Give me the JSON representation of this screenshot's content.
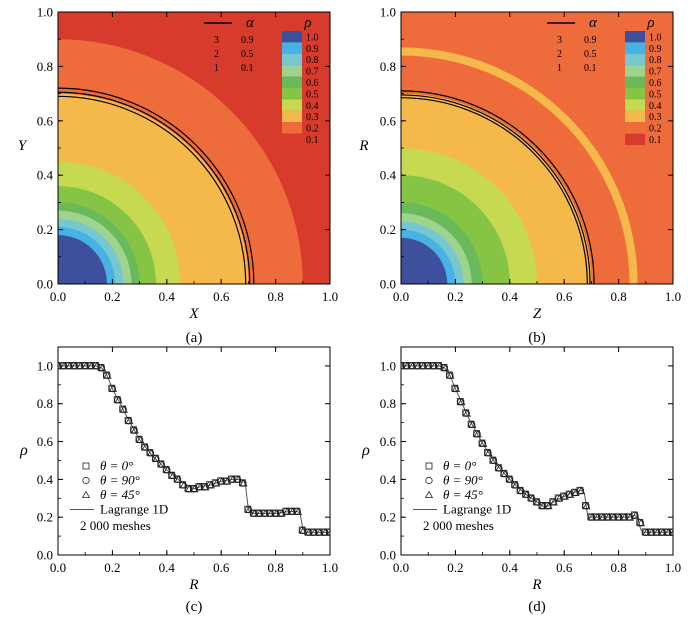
{
  "chart_data": [
    {
      "type": "heatmap",
      "caption": "(a)",
      "xlabel": "X",
      "ylabel": "Y",
      "xlim": [
        0,
        1.0
      ],
      "ylim": [
        0,
        1.0
      ],
      "xticks": [
        "0.0",
        "0.2",
        "0.4",
        "0.6",
        "0.8",
        "1.0"
      ],
      "yticks": [
        "0.0",
        "0.2",
        "0.4",
        "0.6",
        "0.8",
        "1.0"
      ],
      "density_bands": [
        {
          "level": 1.0,
          "outer_radius": 0.18
        },
        {
          "level": 0.9,
          "outer_radius": 0.21
        },
        {
          "level": 0.8,
          "outer_radius": 0.24
        },
        {
          "level": 0.7,
          "outer_radius": 0.27
        },
        {
          "level": 0.6,
          "outer_radius": 0.3
        },
        {
          "level": 0.5,
          "outer_radius": 0.36
        },
        {
          "level": 0.4,
          "outer_radius": 0.45
        },
        {
          "level": 0.3,
          "outer_radius": 0.7
        },
        {
          "level": 0.2,
          "outer_radius": 0.9
        }
      ],
      "background_level": 0.1,
      "alpha_contours": [
        {
          "id": "1",
          "alpha": 0.1,
          "radius": 0.69
        },
        {
          "id": "2",
          "alpha": 0.5,
          "radius": 0.705
        },
        {
          "id": "3",
          "alpha": 0.9,
          "radius": 0.72
        }
      ]
    },
    {
      "type": "heatmap",
      "caption": "(b)",
      "xlabel": "Z",
      "ylabel": "R",
      "xlim": [
        0,
        1.0
      ],
      "ylim": [
        0,
        1.0
      ],
      "xticks": [
        "0.0",
        "0.2",
        "0.4",
        "0.6",
        "0.8",
        "1.0"
      ],
      "yticks": [
        "0.0",
        "0.2",
        "0.4",
        "0.6",
        "0.8",
        "1.0"
      ],
      "density_bands": [
        {
          "level": 1.0,
          "outer_radius": 0.17
        },
        {
          "level": 0.9,
          "outer_radius": 0.2
        },
        {
          "level": 0.8,
          "outer_radius": 0.23
        },
        {
          "level": 0.7,
          "outer_radius": 0.26
        },
        {
          "level": 0.6,
          "outer_radius": 0.3
        },
        {
          "level": 0.5,
          "outer_radius": 0.4
        },
        {
          "level": 0.4,
          "outer_radius": 0.5
        },
        {
          "level": 0.3,
          "outer_radius": 0.7
        },
        {
          "level": 0.2,
          "outer_radius": 0.84
        },
        {
          "level": 0.3,
          "outer_radius": 0.87
        }
      ],
      "background_level": 0.2,
      "alpha_contours": [
        {
          "id": "1",
          "alpha": 0.1,
          "radius": 0.685
        },
        {
          "id": "2",
          "alpha": 0.5,
          "radius": 0.695
        },
        {
          "id": "3",
          "alpha": 0.9,
          "radius": 0.71
        }
      ]
    },
    {
      "type": "scatter",
      "caption": "(c)",
      "xlabel": "R",
      "ylabel": "ρ",
      "xlim": [
        0,
        1.0
      ],
      "ylim": [
        0,
        1.1
      ],
      "xticks": [
        "0.0",
        "0.2",
        "0.4",
        "0.6",
        "0.8",
        "1.0"
      ],
      "yticks": [
        "0.0",
        "0.2",
        "0.4",
        "0.6",
        "0.8",
        "1.0"
      ],
      "line_series": {
        "name": "Lagrange 1D",
        "x": [
          0,
          0.14,
          0.16,
          0.18,
          0.2,
          0.25,
          0.3,
          0.35,
          0.4,
          0.45,
          0.5,
          0.52,
          0.56,
          0.6,
          0.64,
          0.67,
          0.685,
          0.69,
          0.695,
          0.7,
          0.705,
          0.71,
          0.75,
          0.8,
          0.85,
          0.88,
          0.89,
          0.895,
          0.9,
          0.905,
          0.91,
          0.95,
          1.0
        ],
        "y": [
          1.0,
          1.0,
          0.99,
          0.95,
          0.88,
          0.74,
          0.61,
          0.52,
          0.45,
          0.39,
          0.35,
          0.36,
          0.37,
          0.39,
          0.4,
          0.4,
          0.39,
          0.36,
          0.3,
          0.24,
          0.23,
          0.22,
          0.22,
          0.22,
          0.23,
          0.23,
          0.22,
          0.18,
          0.14,
          0.13,
          0.12,
          0.12,
          0.12
        ]
      },
      "markers": {
        "x": [
          0,
          0.02,
          0.04,
          0.06,
          0.08,
          0.1,
          0.12,
          0.14,
          0.16,
          0.18,
          0.2,
          0.22,
          0.24,
          0.26,
          0.28,
          0.3,
          0.32,
          0.34,
          0.36,
          0.38,
          0.4,
          0.42,
          0.44,
          0.46,
          0.48,
          0.5,
          0.52,
          0.54,
          0.56,
          0.58,
          0.6,
          0.62,
          0.64,
          0.66,
          0.68,
          0.7,
          0.72,
          0.74,
          0.76,
          0.78,
          0.8,
          0.82,
          0.84,
          0.86,
          0.88,
          0.9,
          0.92,
          0.94,
          0.96,
          0.98,
          1.0
        ],
        "y": [
          1.0,
          1.0,
          1.0,
          1.0,
          1.0,
          1.0,
          1.0,
          1.0,
          0.99,
          0.95,
          0.88,
          0.82,
          0.77,
          0.71,
          0.66,
          0.61,
          0.57,
          0.54,
          0.51,
          0.48,
          0.45,
          0.42,
          0.4,
          0.37,
          0.35,
          0.35,
          0.36,
          0.36,
          0.37,
          0.38,
          0.39,
          0.39,
          0.4,
          0.4,
          0.38,
          0.24,
          0.22,
          0.22,
          0.22,
          0.22,
          0.22,
          0.22,
          0.23,
          0.23,
          0.23,
          0.13,
          0.12,
          0.12,
          0.12,
          0.12,
          0.12
        ]
      },
      "legend": [
        {
          "marker": "square",
          "label": "θ = 0°"
        },
        {
          "marker": "circle",
          "label": "θ = 90°"
        },
        {
          "marker": "triangle",
          "label": "θ = 45°"
        },
        {
          "marker": "line",
          "label": "Lagrange 1D"
        },
        {
          "marker": "none",
          "label": "2 000 meshes"
        }
      ]
    },
    {
      "type": "scatter",
      "caption": "(d)",
      "xlabel": "R",
      "ylabel": "ρ",
      "xlim": [
        0,
        1.0
      ],
      "ylim": [
        0,
        1.1
      ],
      "xticks": [
        "0.0",
        "0.2",
        "0.4",
        "0.6",
        "0.8",
        "1.0"
      ],
      "yticks": [
        "0.0",
        "0.2",
        "0.4",
        "0.6",
        "0.8",
        "1.0"
      ],
      "line_series": {
        "name": "Lagrange 1D",
        "x": [
          0,
          0.14,
          0.16,
          0.18,
          0.2,
          0.25,
          0.3,
          0.35,
          0.4,
          0.45,
          0.5,
          0.53,
          0.56,
          0.6,
          0.63,
          0.66,
          0.67,
          0.675,
          0.68,
          0.685,
          0.69,
          0.72,
          0.76,
          0.8,
          0.84,
          0.86,
          0.87,
          0.875,
          0.88,
          0.885,
          0.89,
          0.95,
          1.0
        ],
        "y": [
          1.0,
          1.0,
          0.99,
          0.95,
          0.88,
          0.72,
          0.59,
          0.48,
          0.4,
          0.33,
          0.28,
          0.25,
          0.28,
          0.31,
          0.33,
          0.34,
          0.34,
          0.32,
          0.27,
          0.22,
          0.2,
          0.2,
          0.2,
          0.2,
          0.2,
          0.21,
          0.2,
          0.17,
          0.14,
          0.13,
          0.12,
          0.12,
          0.12
        ]
      },
      "markers": {
        "x": [
          0,
          0.02,
          0.04,
          0.06,
          0.08,
          0.1,
          0.12,
          0.14,
          0.16,
          0.18,
          0.2,
          0.22,
          0.24,
          0.26,
          0.28,
          0.3,
          0.32,
          0.34,
          0.36,
          0.38,
          0.4,
          0.42,
          0.44,
          0.46,
          0.48,
          0.5,
          0.52,
          0.54,
          0.56,
          0.58,
          0.6,
          0.62,
          0.64,
          0.66,
          0.68,
          0.7,
          0.72,
          0.74,
          0.76,
          0.78,
          0.8,
          0.82,
          0.84,
          0.86,
          0.88,
          0.9,
          0.92,
          0.94,
          0.96,
          0.98,
          1.0
        ],
        "y": [
          1.0,
          1.0,
          1.0,
          1.0,
          1.0,
          1.0,
          1.0,
          1.0,
          0.99,
          0.95,
          0.88,
          0.81,
          0.75,
          0.69,
          0.64,
          0.59,
          0.54,
          0.5,
          0.46,
          0.43,
          0.4,
          0.37,
          0.34,
          0.32,
          0.3,
          0.28,
          0.26,
          0.26,
          0.28,
          0.3,
          0.31,
          0.32,
          0.33,
          0.34,
          0.26,
          0.2,
          0.2,
          0.2,
          0.2,
          0.2,
          0.2,
          0.2,
          0.2,
          0.21,
          0.17,
          0.12,
          0.12,
          0.12,
          0.12,
          0.12,
          0.12
        ]
      },
      "legend": [
        {
          "marker": "square",
          "label": "θ = 0°"
        },
        {
          "marker": "circle",
          "label": "θ = 90°"
        },
        {
          "marker": "triangle",
          "label": "θ = 45°"
        },
        {
          "marker": "line",
          "label": "Lagrange 1D"
        },
        {
          "marker": "none",
          "label": "2 000 meshes"
        }
      ]
    }
  ],
  "colorbar": {
    "title": "ρ",
    "levels": [
      "1.0",
      "0.9",
      "0.8",
      "0.7",
      "0.6",
      "0.5",
      "0.4",
      "0.3",
      "0.2",
      "0.1"
    ],
    "colors": [
      "#3e509c",
      "#47b3e4",
      "#76c7cf",
      "#9fd48e",
      "#6ab95a",
      "#86c445",
      "#c6d951",
      "#f4b94a",
      "#ee6b3c",
      "#d63b2c"
    ]
  },
  "alpha_legend": {
    "title": "α",
    "rows": [
      {
        "id": "3",
        "value": "0.9"
      },
      {
        "id": "2",
        "value": "0.5"
      },
      {
        "id": "1",
        "value": "0.1"
      }
    ]
  }
}
